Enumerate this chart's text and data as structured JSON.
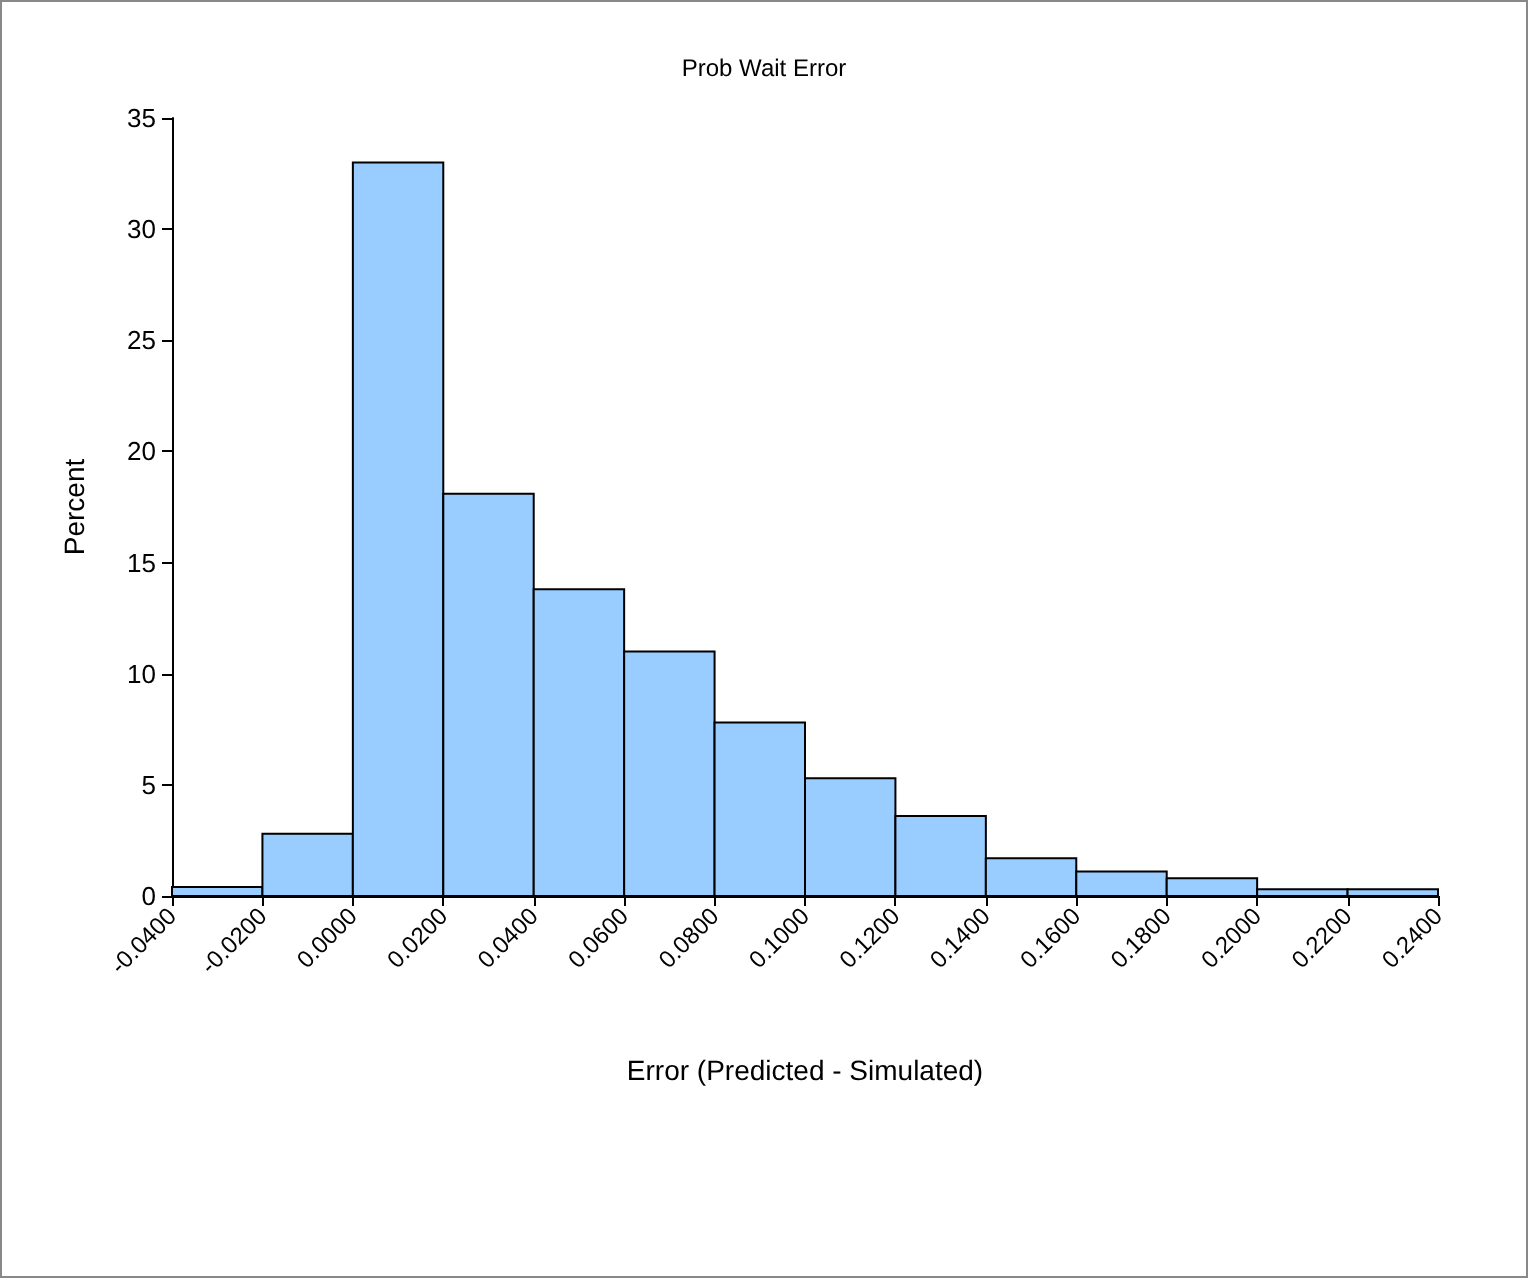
{
  "chart_data": {
    "type": "histogram",
    "title": "Prob Wait Error",
    "xlabel": "Error (Predicted - Simulated)",
    "ylabel": "Percent",
    "bins": [
      -0.04,
      -0.02,
      0,
      0.02,
      0.04,
      0.06,
      0.08,
      0.1,
      0.12,
      0.14,
      0.16,
      0.18,
      0.2,
      0.22,
      0.24
    ],
    "values": [
      0.4,
      2.8,
      33,
      18.1,
      13.8,
      11,
      7.8,
      5.3,
      3.6,
      1.7,
      1.1,
      0.8,
      0.3,
      0.3
    ],
    "color": "#99ccff",
    "xlim": [
      -0.04,
      0.24
    ],
    "xticks": [
      {
        "value": -0.04,
        "label": "-0.0400"
      },
      {
        "value": -0.02,
        "label": "-0.0200"
      },
      {
        "value": 0,
        "label": "0.0000"
      },
      {
        "value": 0.02,
        "label": "0.0200"
      },
      {
        "value": 0.04,
        "label": "0.0400"
      },
      {
        "value": 0.06,
        "label": "0.0600"
      },
      {
        "value": 0.08,
        "label": "0.0800"
      },
      {
        "value": 0.1,
        "label": "0.1000"
      },
      {
        "value": 0.12,
        "label": "0.1200"
      },
      {
        "value": 0.14,
        "label": "0.1400"
      },
      {
        "value": 0.16,
        "label": "0.1600"
      },
      {
        "value": 0.18,
        "label": "0.1800"
      },
      {
        "value": 0.2,
        "label": "0.2000"
      },
      {
        "value": 0.22,
        "label": "0.2200"
      },
      {
        "value": 0.24,
        "label": "0.2400"
      }
    ],
    "ylim": [
      0,
      35
    ],
    "yticks": [
      0,
      5,
      10,
      15,
      20,
      25,
      30,
      35
    ],
    "grid": false
  }
}
